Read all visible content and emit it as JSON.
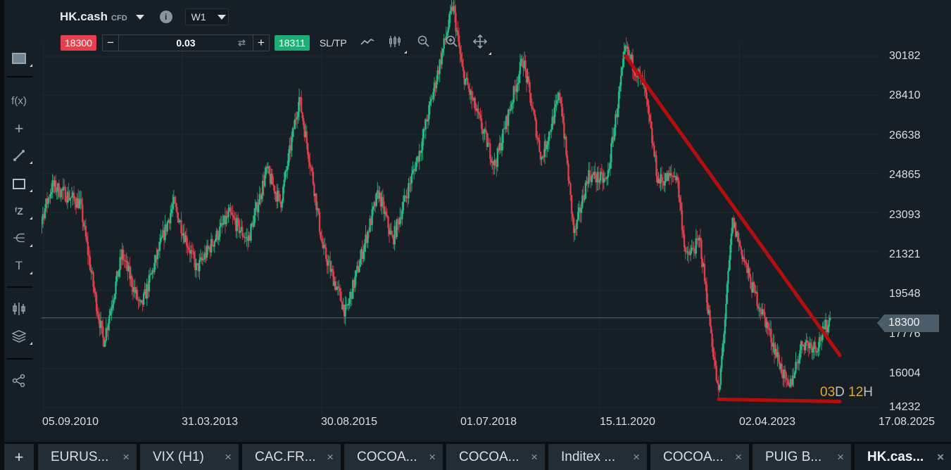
{
  "header": {
    "symbol": "HK.cash",
    "symbol_type": "CFD",
    "info_icon": "i",
    "timeframe": "W1"
  },
  "trade_bar": {
    "bid_price": "18300",
    "volume": "0.03",
    "minus": "−",
    "plus": "+",
    "swap_icon": "⇄",
    "ask_price": "18311",
    "sltp_label": "SL/TP"
  },
  "chart_tools": [
    {
      "name": "line-chart-icon",
      "glyph": "⟋"
    },
    {
      "name": "candles-icon",
      "glyph": "┆"
    },
    {
      "name": "zoom-out-icon",
      "glyph": "⊖"
    },
    {
      "name": "zoom-in-icon",
      "glyph": "⊕"
    },
    {
      "name": "move-icon",
      "glyph": "✥"
    }
  ],
  "left_toolbar": [
    {
      "name": "chart-window-icon",
      "glyph": "▭"
    },
    {
      "name": "indicators-icon",
      "glyph": "f(x)"
    },
    {
      "name": "crosshair-icon",
      "glyph": "+"
    },
    {
      "name": "trendline-icon",
      "glyph": "⟋"
    },
    {
      "name": "rectangle-icon",
      "glyph": "□"
    },
    {
      "name": "fibonacci-icon",
      "glyph": "ᶠZ"
    },
    {
      "name": "pitchfork-icon",
      "glyph": "⋲"
    },
    {
      "name": "text-icon",
      "glyph": "T"
    },
    {
      "name": "chart-type-icon",
      "glyph": "⫴"
    },
    {
      "name": "layers-icon",
      "glyph": "≋"
    },
    {
      "name": "share-icon",
      "glyph": "⋖"
    }
  ],
  "current_price_tag": "18300",
  "countdown": {
    "d": "03",
    "d_unit": "D",
    "h": "12",
    "h_unit": "H"
  },
  "colors": {
    "up": "#26c28a",
    "down": "#e5414f",
    "trendline": "#b40d0d",
    "background": "#161f26",
    "grid": "#1f2a32",
    "countdown_accent": "#e7a23a"
  },
  "tabs": [
    {
      "label": "EURUS...",
      "active": false
    },
    {
      "label": "VIX (H1)",
      "active": false
    },
    {
      "label": "CAC.FR...",
      "active": false
    },
    {
      "label": "COCOA...",
      "active": false
    },
    {
      "label": "COCOA...",
      "active": false
    },
    {
      "label": "Inditex ...",
      "active": false
    },
    {
      "label": "COCOA...",
      "active": false
    },
    {
      "label": "PUIG B...",
      "active": false
    },
    {
      "label": "HK.cas...",
      "active": true
    }
  ],
  "add_tab": "+",
  "chart_data": {
    "type": "candlestick",
    "title": "HK.cash CFD W1",
    "xlabel": "",
    "ylabel": "",
    "ylim": [
      13500,
      31500
    ],
    "y_ticks": [
      30182,
      28410,
      26638,
      24865,
      23093,
      21321,
      19548,
      17776,
      16004,
      14232
    ],
    "x_ticks": [
      "05.09.2010",
      "31.03.2013",
      "30.08.2015",
      "01.07.2018",
      "15.11.2020",
      "02.04.2023",
      "17.08.2025"
    ],
    "grid": true,
    "current_price": 18300,
    "price_path": [
      {
        "date": "2010-06",
        "close": 21000
      },
      {
        "date": "2010-11",
        "close": 24300
      },
      {
        "date": "2011-05",
        "close": 23500
      },
      {
        "date": "2011-08",
        "close": 19500
      },
      {
        "date": "2011-10",
        "close": 17200
      },
      {
        "date": "2012-02",
        "close": 21200
      },
      {
        "date": "2012-06",
        "close": 18700
      },
      {
        "date": "2013-01",
        "close": 23500
      },
      {
        "date": "2013-06",
        "close": 20500
      },
      {
        "date": "2014-01",
        "close": 23000
      },
      {
        "date": "2014-05",
        "close": 21800
      },
      {
        "date": "2014-09",
        "close": 25000
      },
      {
        "date": "2014-12",
        "close": 23500
      },
      {
        "date": "2015-04",
        "close": 28300
      },
      {
        "date": "2015-07",
        "close": 24500
      },
      {
        "date": "2015-09",
        "close": 21500
      },
      {
        "date": "2016-02",
        "close": 18500
      },
      {
        "date": "2016-09",
        "close": 24000
      },
      {
        "date": "2016-12",
        "close": 21800
      },
      {
        "date": "2017-06",
        "close": 26000
      },
      {
        "date": "2018-01",
        "close": 32500
      },
      {
        "date": "2018-03",
        "close": 29500
      },
      {
        "date": "2018-10",
        "close": 25200
      },
      {
        "date": "2019-04",
        "close": 30100
      },
      {
        "date": "2019-08",
        "close": 25500
      },
      {
        "date": "2019-12",
        "close": 28500
      },
      {
        "date": "2020-03",
        "close": 22000
      },
      {
        "date": "2020-06",
        "close": 24800
      },
      {
        "date": "2020-10",
        "close": 24500
      },
      {
        "date": "2021-02",
        "close": 30500
      },
      {
        "date": "2021-06",
        "close": 28800
      },
      {
        "date": "2021-09",
        "close": 24500
      },
      {
        "date": "2022-01",
        "close": 24800
      },
      {
        "date": "2022-03",
        "close": 21000
      },
      {
        "date": "2022-06",
        "close": 21800
      },
      {
        "date": "2022-10",
        "close": 14700
      },
      {
        "date": "2023-01",
        "close": 22700
      },
      {
        "date": "2023-05",
        "close": 19800
      },
      {
        "date": "2023-08",
        "close": 18200
      },
      {
        "date": "2024-01",
        "close": 15000
      },
      {
        "date": "2024-04",
        "close": 17200
      },
      {
        "date": "2024-07",
        "close": 17000
      },
      {
        "date": "2024-10",
        "close": 18300
      }
    ],
    "annotations": [
      {
        "type": "trendline",
        "from": {
          "date": "2021-02",
          "price": 30200
        },
        "to": {
          "date": "2024-12",
          "price": 16600
        },
        "color": "#b40d0d"
      },
      {
        "type": "trendline",
        "from": {
          "date": "2022-10",
          "price": 14600
        },
        "to": {
          "date": "2024-12",
          "price": 14500
        },
        "color": "#b40d0d"
      }
    ]
  }
}
